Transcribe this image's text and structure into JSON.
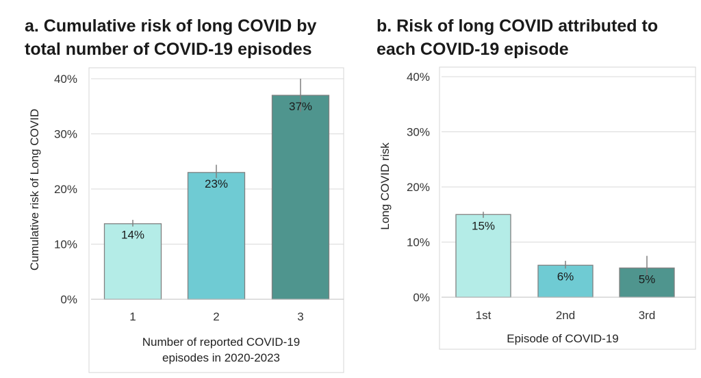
{
  "chart_data": [
    {
      "type": "bar",
      "title_lines": [
        "a. Cumulative  risk of long COVID by",
        "total number of COVID-19 episodes"
      ],
      "ylabel": "Cumulative risk of Long COVID",
      "xlabel_lines": [
        "Number of reported COVID-19",
        "episodes in 2020-2023"
      ],
      "categories": [
        "1",
        "2",
        "3"
      ],
      "values": [
        13.7,
        23.0,
        37.0
      ],
      "error_low": [
        13.2,
        22.0,
        34.0
      ],
      "error_high": [
        14.4,
        24.4,
        40.0
      ],
      "data_labels": [
        "14%",
        "23%",
        "37%"
      ],
      "bar_colors": [
        "#b4ece7",
        "#6fcbd3",
        "#4f958e"
      ],
      "ylim": [
        0,
        40
      ],
      "yticks": [
        0,
        10,
        20,
        30,
        40
      ],
      "ytick_labels": [
        "0%",
        "10%",
        "20%",
        "30%",
        "40%"
      ],
      "grid": true
    },
    {
      "type": "bar",
      "title_lines": [
        "b. Risk of long COVID attributed to",
        "each COVID-19 episode"
      ],
      "ylabel": "Long COVID risk",
      "xlabel_lines": [
        "Episode of COVID-19"
      ],
      "categories": [
        "1st",
        "2nd",
        "3rd"
      ],
      "values": [
        15.0,
        5.8,
        5.3
      ],
      "error_low": [
        14.4,
        5.2,
        3.8
      ],
      "error_high": [
        15.5,
        6.6,
        7.5
      ],
      "data_labels": [
        "15%",
        "6%",
        "5%"
      ],
      "bar_colors": [
        "#b4ece7",
        "#6fcbd3",
        "#4f958e"
      ],
      "ylim": [
        0,
        40
      ],
      "yticks": [
        0,
        10,
        20,
        30,
        40
      ],
      "ytick_labels": [
        "0%",
        "10%",
        "20%",
        "30%",
        "40%"
      ],
      "grid": true
    }
  ]
}
